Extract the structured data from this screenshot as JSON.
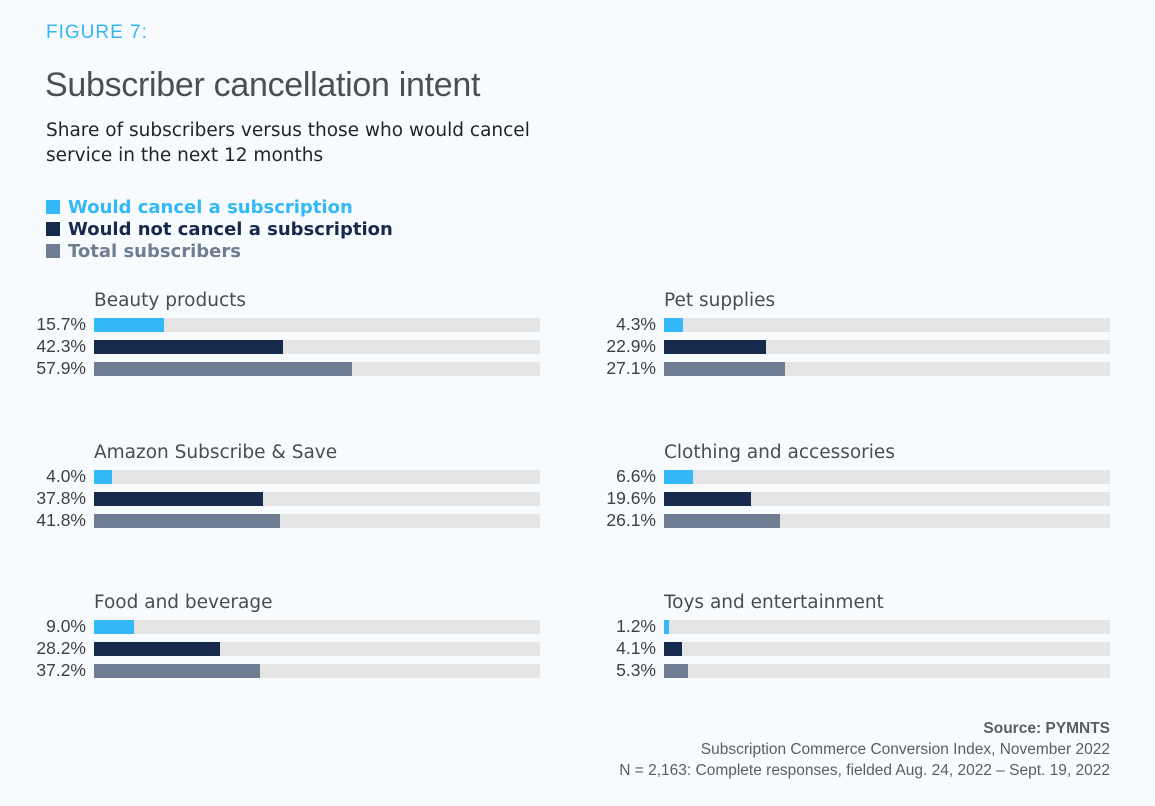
{
  "figure_label": "FIGURE 7:",
  "title": "Subscriber cancellation intent",
  "subtitle": "Share of subscribers versus those who would cancel service in the next 12 months",
  "colors": {
    "would_cancel": "#33b8f8",
    "would_not_cancel": "#162a4d",
    "total": "#6f7d93",
    "track": "#e5e5e5",
    "figure_label": "#33b5f5"
  },
  "source": {
    "title": "Source: PYMNTS",
    "line1": "Subscription Commerce Conversion Index, November 2022",
    "line2": "N = 2,163: Complete responses, fielded Aug. 24, 2022 – Sept. 19, 2022"
  },
  "chart_data": {
    "type": "bar",
    "orientation": "horizontal",
    "layout": "small-multiples",
    "title": "Subscriber cancellation intent",
    "subtitle": "Share of subscribers versus those who would cancel service in the next 12 months",
    "xlabel": "",
    "ylabel": "",
    "xlim": [
      0,
      100
    ],
    "unit": "%",
    "grid": false,
    "legend_position": "top-left",
    "legend": [
      {
        "name": "Would cancel a subscription",
        "key": "would_cancel"
      },
      {
        "name": "Would not cancel a subscription",
        "key": "would_not_cancel"
      },
      {
        "name": "Total subscribers",
        "key": "total"
      }
    ],
    "categories": [
      "Beauty products",
      "Pet supplies",
      "Amazon Subscribe & Save",
      "Clothing and accessories",
      "Food and beverage",
      "Toys and entertainment"
    ],
    "series": [
      {
        "name": "Would cancel a subscription",
        "values": [
          15.7,
          4.3,
          4.0,
          6.6,
          9.0,
          1.2
        ],
        "labels": [
          "15.7%",
          "4.3%",
          "4.0%",
          "6.6%",
          "9.0%",
          "1.2%"
        ]
      },
      {
        "name": "Would not cancel a subscription",
        "values": [
          42.3,
          22.9,
          37.8,
          19.6,
          28.2,
          4.1
        ],
        "labels": [
          "42.3%",
          "22.9%",
          "37.8%",
          "19.6%",
          "28.2%",
          "4.1%"
        ]
      },
      {
        "name": "Total subscribers",
        "values": [
          57.9,
          27.1,
          41.8,
          26.1,
          37.2,
          5.3
        ],
        "labels": [
          "57.9%",
          "27.1%",
          "41.8%",
          "26.1%",
          "37.2%",
          "5.3%"
        ]
      }
    ]
  }
}
